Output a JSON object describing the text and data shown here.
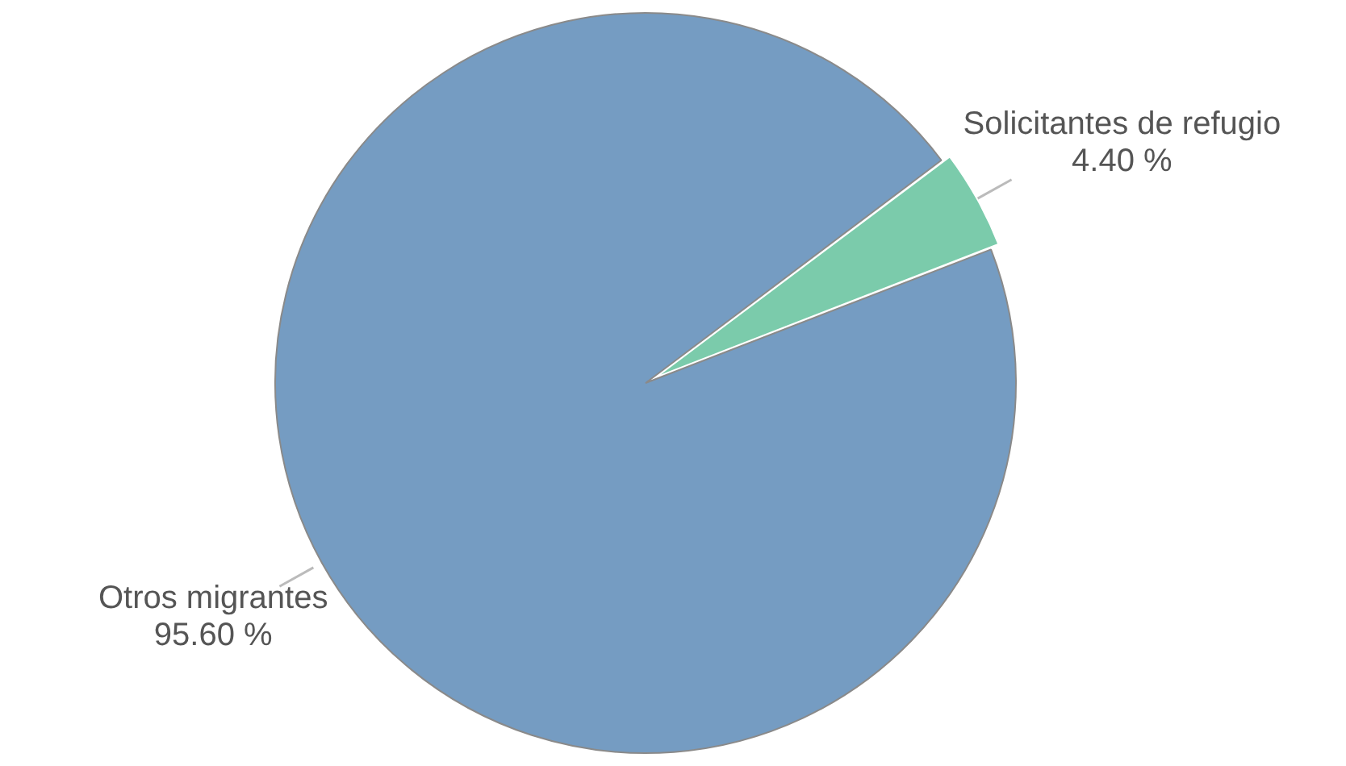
{
  "chart_data": {
    "type": "pie",
    "categories": [
      "Solicitantes de refugio",
      "Otros migrantes"
    ],
    "values": [
      4.4,
      95.6
    ],
    "colors": [
      "#7bcbab",
      "#759cc2"
    ],
    "value_labels": [
      "4.40 %",
      "95.60 %"
    ],
    "legend": false
  }
}
